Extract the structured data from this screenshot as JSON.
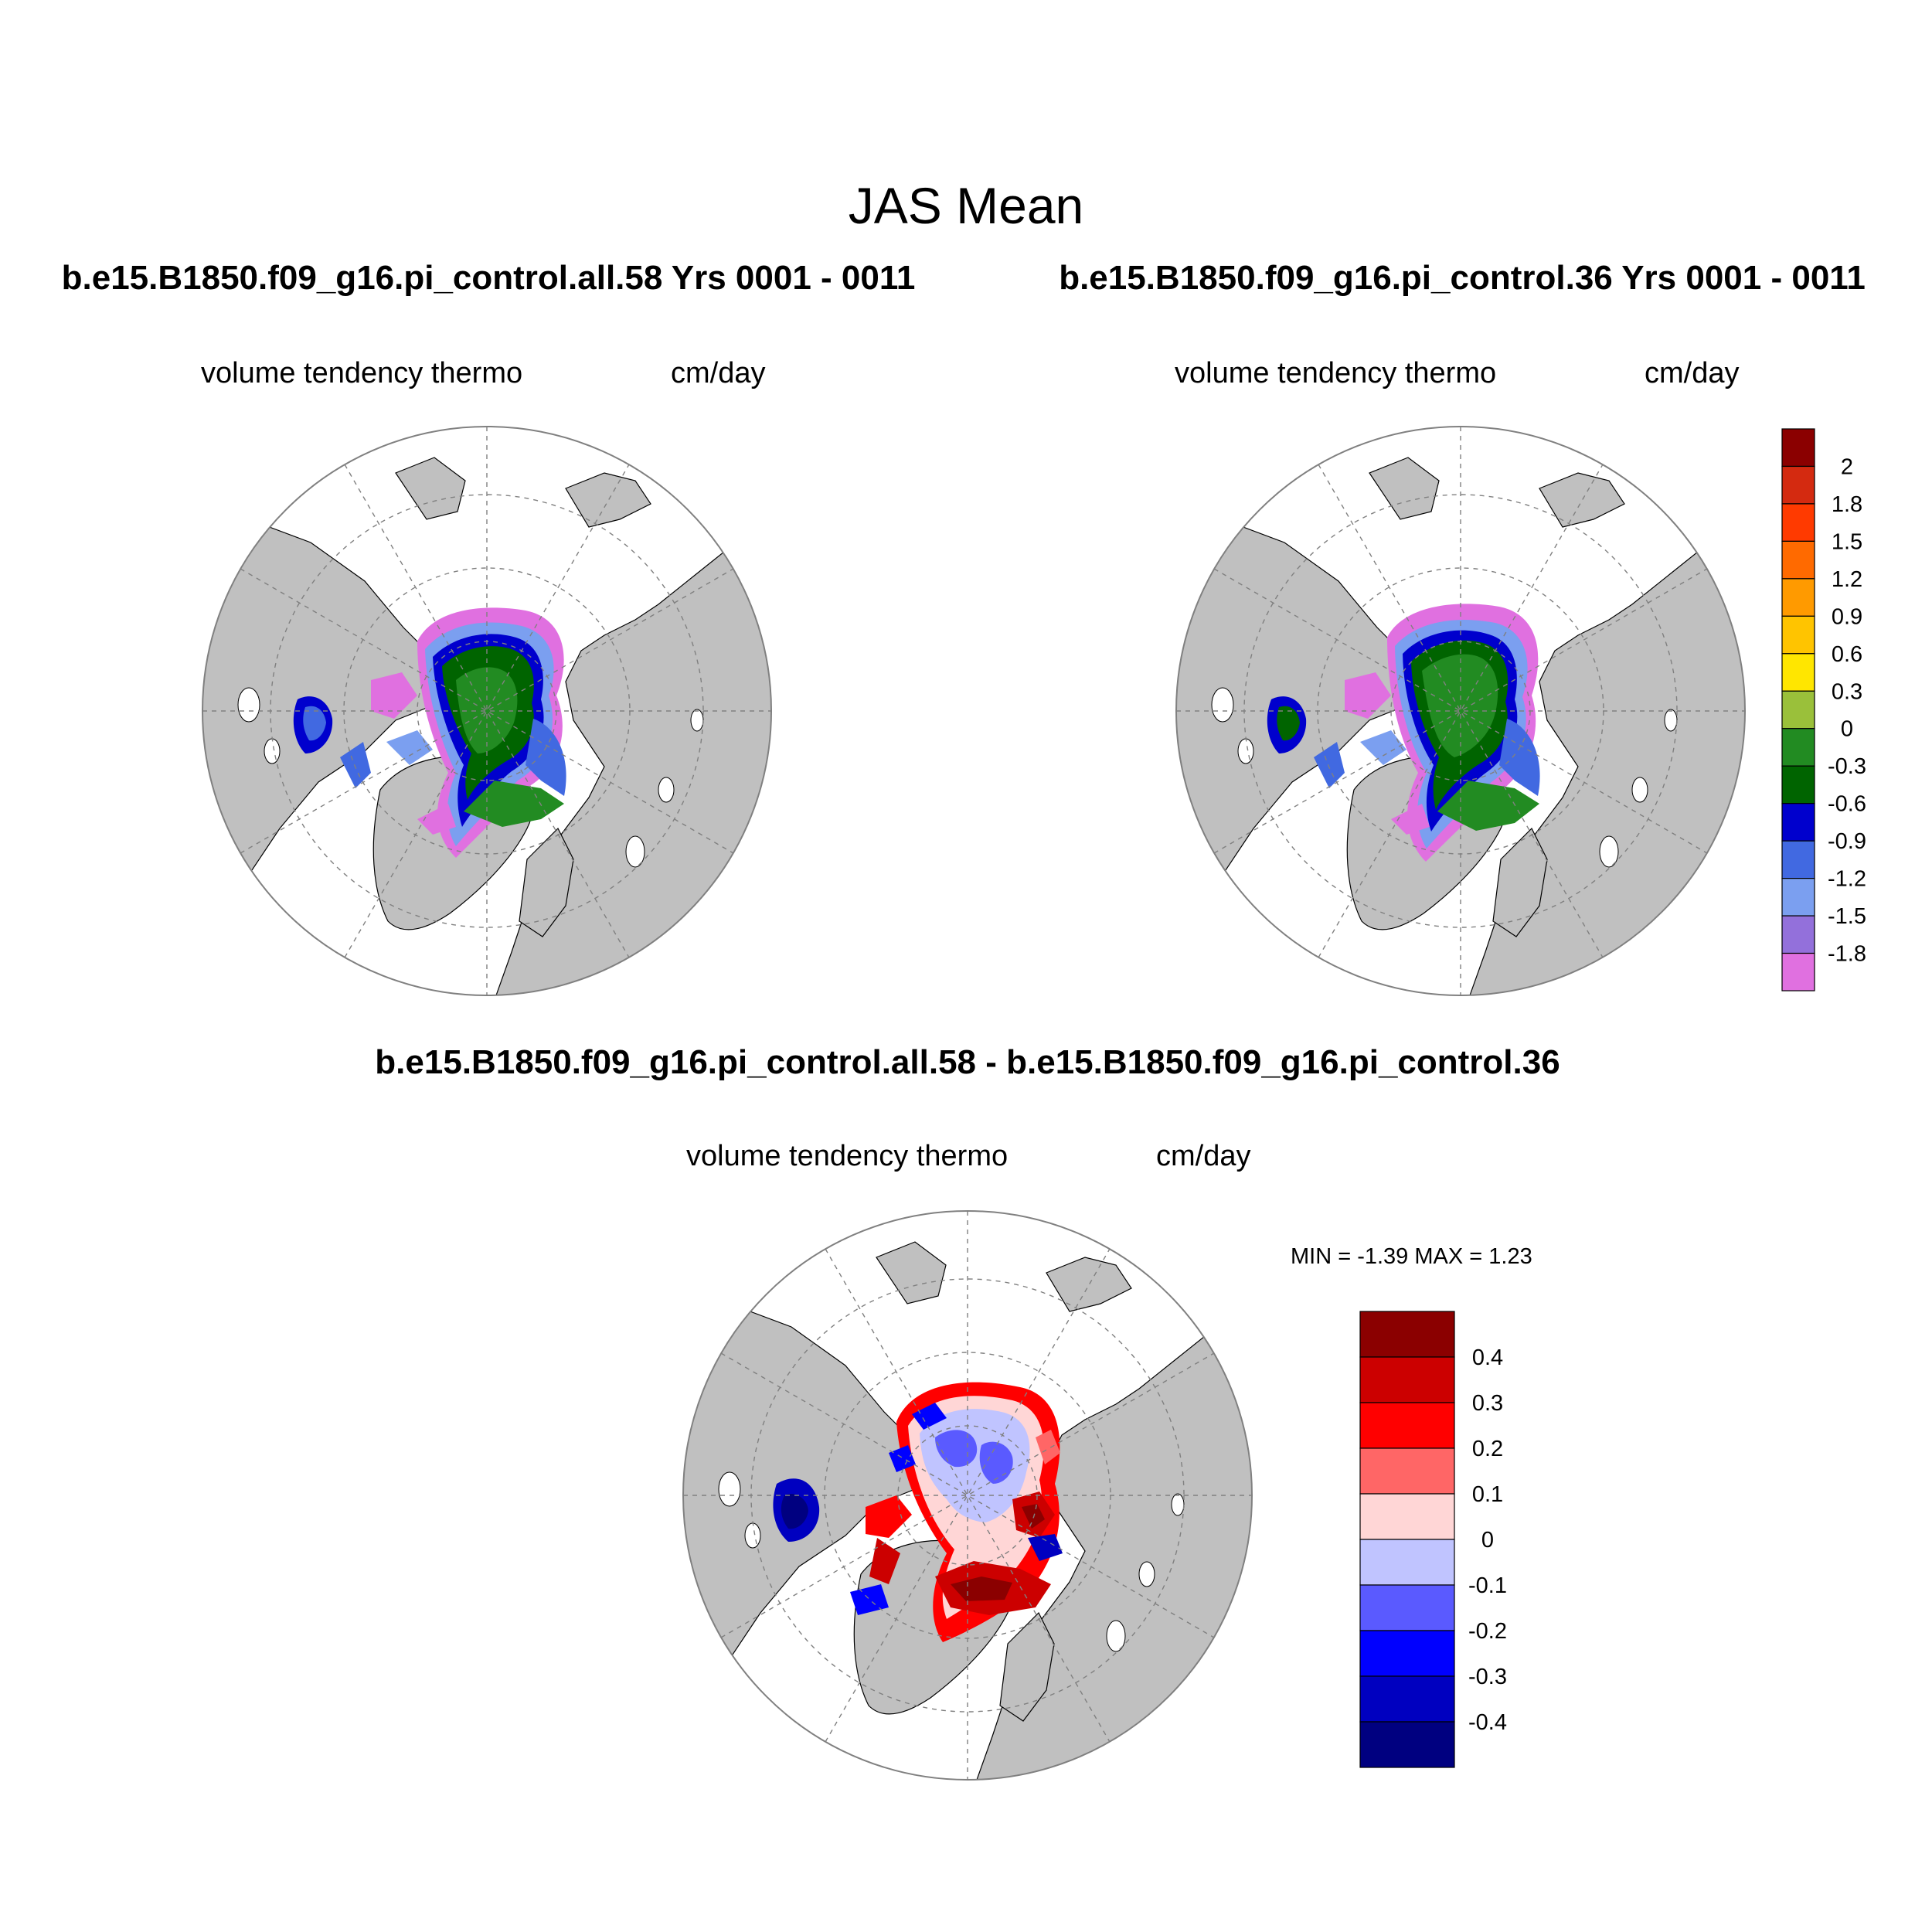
{
  "title": "JAS Mean",
  "colors": {
    "land": "#c0c0c0",
    "coast": "#000000",
    "grid": "#808080"
  },
  "panels": [
    {
      "title": "b.e15.B1850.f09_g16.pi_control.all.58  Yrs 0001 - 0011",
      "left_label": "volume tendency thermo",
      "right_label": "cm/day"
    },
    {
      "title": "b.e15.B1850.f09_g16.pi_control.36  Yrs 0001 - 0011",
      "left_label": "volume tendency thermo",
      "right_label": "cm/day"
    },
    {
      "title": "b.e15.B1850.f09_g16.pi_control.all.58 - b.e15.B1850.f09_g16.pi_control.36",
      "left_label": "volume tendency thermo",
      "right_label": "cm/day",
      "min_max": "MIN =  -1.39 MAX =   1.23"
    }
  ],
  "chart_data": [
    {
      "type": "heatmap",
      "projection": "north-polar-stereographic",
      "colorbar": {
        "orientation": "vertical",
        "labels": [
          "2",
          "1.8",
          "1.5",
          "1.2",
          "0.9",
          "0.6",
          "0.3",
          "0",
          "-0.3",
          "-0.6",
          "-0.9",
          "-1.2",
          "-1.5",
          "-1.8"
        ],
        "colors": [
          "#8b0000",
          "#d42a10",
          "#ff3a00",
          "#ff6a00",
          "#ff9a00",
          "#ffc400",
          "#ffe600",
          "#9ac03a",
          "#228b22",
          "#006400",
          "#0000cd",
          "#4169e1",
          "#7b9ff0",
          "#9370db",
          "#e070e0"
        ]
      }
    },
    {
      "type": "heatmap",
      "projection": "north-polar-stereographic",
      "colorbar": {
        "orientation": "vertical",
        "labels": [
          "0.4",
          "0.3",
          "0.2",
          "0.1",
          "0",
          "-0.1",
          "-0.2",
          "-0.3",
          "-0.4"
        ],
        "colors": [
          "#8b0000",
          "#cc0000",
          "#ff0000",
          "#ff6666",
          "#ffd6d6",
          "#c0c4ff",
          "#5a5aff",
          "#0000ff",
          "#0000c0",
          "#000080"
        ]
      },
      "min": -1.39,
      "max": 1.23
    }
  ]
}
